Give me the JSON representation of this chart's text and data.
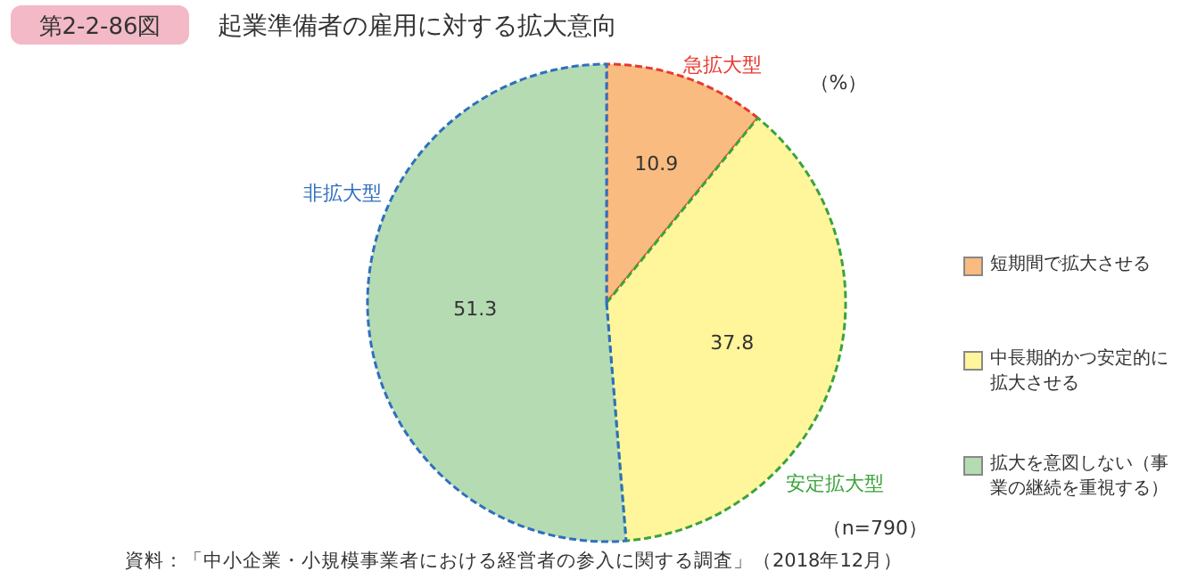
{
  "chart_data": {
    "type": "pie",
    "title": "起業準備者の雇用に対する拡大意向",
    "categories": [
      "短期間で拡大させる",
      "中長期的かつ安定的に拡大させる",
      "拡大を意図しない（事業の継続を重視する）"
    ],
    "values": [
      10.9,
      37.8,
      51.3
    ],
    "colors": [
      "#f9bb7f",
      "#fff59b",
      "#b5dbb2"
    ],
    "data_labels": true,
    "legend": "right",
    "annotations": [
      "第2-2-86図",
      "急拡大型",
      "安定拡大型",
      "非拡大型",
      "（%）",
      "（n=790）",
      "資料：「中小企業・小規模事業者における経営者の参入に関する調査」（2018年12月）"
    ]
  }
}
